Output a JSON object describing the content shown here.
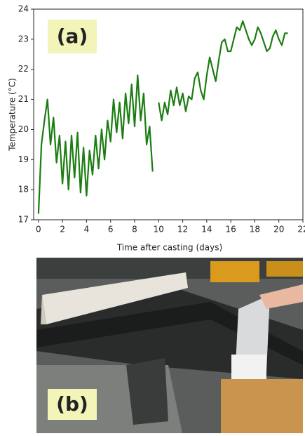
{
  "chart_data": {
    "type": "line",
    "xlabel": "Time after casting (days)",
    "ylabel": "Temperature (°C)",
    "annotations": [
      "(a)",
      "(b)"
    ],
    "x": [
      0,
      0.25,
      0.5,
      0.75,
      1,
      1.25,
      1.5,
      1.75,
      2,
      2.25,
      2.5,
      2.75,
      3,
      3.25,
      3.5,
      3.75,
      4,
      4.25,
      4.5,
      4.75,
      5,
      5.25,
      5.5,
      5.75,
      6,
      6.25,
      6.5,
      6.75,
      7,
      7.25,
      7.5,
      7.75,
      8,
      8.25,
      8.5,
      8.75,
      9,
      9.25,
      9.5,
      9.75,
      10,
      10.25,
      10.5,
      10.75,
      11,
      11.25,
      11.5,
      11.75,
      12,
      12.25,
      12.5,
      12.75,
      13,
      13.25,
      13.5,
      13.75,
      14,
      14.25,
      14.5,
      14.75,
      15,
      15.25,
      15.5,
      15.75,
      16,
      16.25,
      16.5,
      16.75,
      17,
      17.25,
      17.5,
      17.75,
      18,
      18.25,
      18.5,
      18.75,
      19,
      19.25,
      19.5,
      19.75,
      20,
      20.25,
      20.5,
      20.75
    ],
    "series": [
      {
        "color": "#1b7d12",
        "values": [
          17.2,
          19.5,
          20.3,
          21.0,
          19.5,
          20.4,
          18.9,
          19.8,
          18.2,
          19.6,
          18.0,
          19.8,
          18.4,
          19.9,
          17.9,
          19.4,
          17.8,
          19.3,
          18.5,
          19.8,
          18.7,
          20.0,
          19.0,
          20.3,
          19.6,
          21.0,
          19.9,
          20.9,
          19.7,
          21.2,
          20.2,
          21.5,
          20.1,
          21.8,
          20.3,
          21.2,
          19.5,
          20.1,
          18.6,
          null,
          20.9,
          20.3,
          20.9,
          20.5,
          21.3,
          20.8,
          21.4,
          20.8,
          21.2,
          20.6,
          21.1,
          21.0,
          21.7,
          21.9,
          21.3,
          21.0,
          21.8,
          22.4,
          22.0,
          21.6,
          22.3,
          22.9,
          23.0,
          22.6,
          22.6,
          23.0,
          23.4,
          23.3,
          23.6,
          23.3,
          23.0,
          22.8,
          23.0,
          23.4,
          23.2,
          22.9,
          22.6,
          22.7,
          23.1,
          23.3,
          23.0,
          22.8,
          23.2,
          23.2
        ]
      }
    ],
    "xlim": [
      -0.4,
      22
    ],
    "xticks": [
      0,
      2,
      4,
      6,
      8,
      10,
      12,
      14,
      16,
      18,
      20,
      22
    ],
    "ylim": [
      17,
      24
    ],
    "yticks": [
      17,
      18,
      19,
      20,
      21,
      22,
      23,
      24
    ]
  }
}
